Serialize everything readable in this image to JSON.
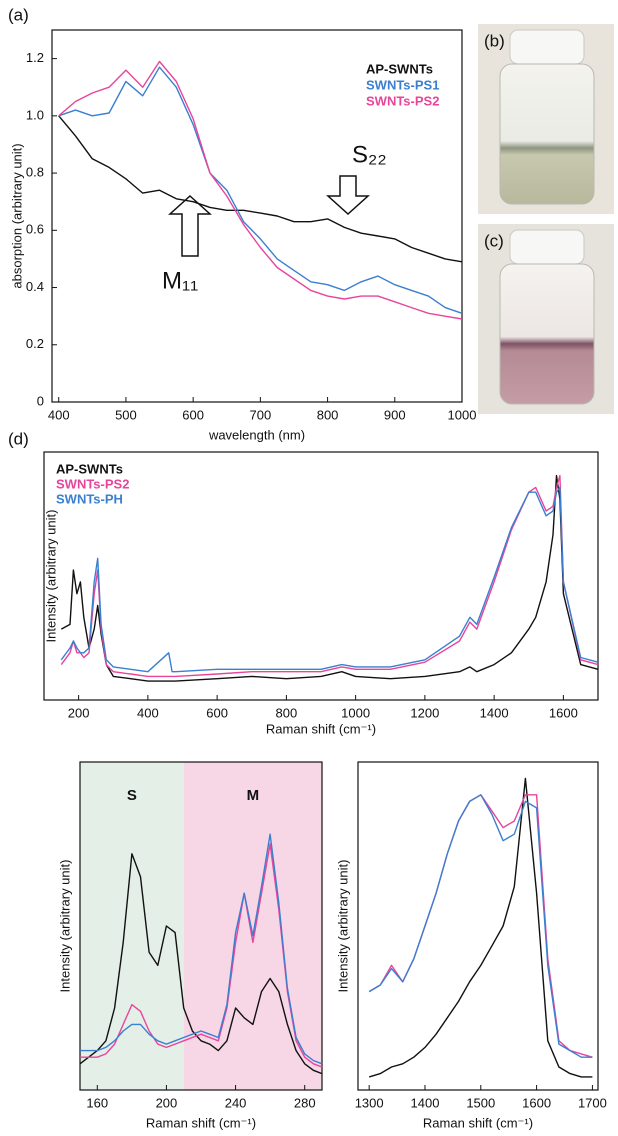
{
  "chart_data": [
    {
      "type": "line",
      "panel_label": "(a)",
      "x_label": "wavelength (nm)",
      "y_label": "absorption (arbitrary unit)",
      "xlim": [
        390,
        1000
      ],
      "ylim": [
        0,
        1.3
      ],
      "xticks": [
        400,
        500,
        600,
        700,
        800,
        900,
        1000
      ],
      "yticks": [
        0,
        0.2,
        0.4,
        0.6,
        0.8,
        {
          "value": 1,
          "label": "1.0"
        },
        1.2
      ],
      "annotations": [
        "S₂₂",
        "M₁₁"
      ],
      "x": [
        400,
        425,
        450,
        475,
        500,
        525,
        550,
        575,
        600,
        625,
        650,
        675,
        700,
        725,
        750,
        775,
        800,
        825,
        850,
        875,
        900,
        925,
        950,
        975,
        1000
      ],
      "series": [
        {
          "name": "AP-SWNTs",
          "color": "#111111",
          "values": [
            1.0,
            0.93,
            0.85,
            0.82,
            0.78,
            0.73,
            0.74,
            0.71,
            0.7,
            0.68,
            0.67,
            0.67,
            0.66,
            0.65,
            0.63,
            0.63,
            0.64,
            0.61,
            0.59,
            0.58,
            0.57,
            0.54,
            0.52,
            0.5,
            0.49
          ]
        },
        {
          "name": "SWNTs-PS1",
          "color": "#3a7fd0",
          "values": [
            1.0,
            1.02,
            1.0,
            1.01,
            1.12,
            1.07,
            1.17,
            1.1,
            0.97,
            0.8,
            0.74,
            0.63,
            0.57,
            0.5,
            0.46,
            0.42,
            0.41,
            0.39,
            0.42,
            0.44,
            0.41,
            0.39,
            0.37,
            0.33,
            0.31
          ]
        },
        {
          "name": "SWNTs-PS2",
          "color": "#e8459a",
          "values": [
            1.0,
            1.05,
            1.08,
            1.1,
            1.16,
            1.1,
            1.19,
            1.12,
            0.99,
            0.8,
            0.72,
            0.62,
            0.54,
            0.47,
            0.43,
            0.39,
            0.37,
            0.36,
            0.37,
            0.37,
            0.35,
            0.33,
            0.31,
            0.3,
            0.29
          ]
        }
      ]
    },
    {
      "type": "line",
      "panel_label": "(d)",
      "x_label": "Raman shift (cm⁻¹)",
      "y_label": "Intensity (arbitrary unit)",
      "xlim": [
        100,
        1700
      ],
      "ylim": [
        0,
        1.05
      ],
      "xticks": [
        200,
        400,
        600,
        800,
        1000,
        1200,
        1400,
        1600
      ],
      "x": [
        150,
        175,
        185,
        195,
        205,
        215,
        230,
        245,
        255,
        265,
        280,
        300,
        350,
        400,
        460,
        470,
        480,
        600,
        700,
        800,
        900,
        960,
        1000,
        1100,
        1200,
        1300,
        1330,
        1350,
        1400,
        1450,
        1500,
        1520,
        1550,
        1570,
        1580,
        1590,
        1600,
        1650,
        1700
      ],
      "series": [
        {
          "name": "AP-SWNTs",
          "color": "#111111",
          "values": [
            0.3,
            0.32,
            0.55,
            0.45,
            0.5,
            0.35,
            0.22,
            0.3,
            0.4,
            0.28,
            0.15,
            0.1,
            0.09,
            0.08,
            0.08,
            0.08,
            0.08,
            0.09,
            0.1,
            0.09,
            0.1,
            0.12,
            0.1,
            0.09,
            0.1,
            0.12,
            0.14,
            0.12,
            0.15,
            0.2,
            0.3,
            0.35,
            0.5,
            0.7,
            0.95,
            0.85,
            0.45,
            0.15,
            0.13
          ]
        },
        {
          "name": "SWNTs-PS2",
          "color": "#e8459a",
          "values": [
            0.15,
            0.2,
            0.25,
            0.2,
            0.2,
            0.18,
            0.2,
            0.45,
            0.55,
            0.3,
            0.15,
            0.12,
            0.11,
            0.1,
            0.1,
            0.1,
            0.1,
            0.11,
            0.12,
            0.12,
            0.12,
            0.14,
            0.13,
            0.13,
            0.16,
            0.25,
            0.33,
            0.3,
            0.5,
            0.72,
            0.88,
            0.9,
            0.8,
            0.82,
            0.9,
            0.95,
            0.5,
            0.17,
            0.15
          ]
        },
        {
          "name": "SWNTs-PH",
          "color": "#3a7fd0",
          "values": [
            0.17,
            0.22,
            0.25,
            0.22,
            0.2,
            0.2,
            0.22,
            0.5,
            0.6,
            0.32,
            0.17,
            0.14,
            0.13,
            0.12,
            0.2,
            0.12,
            0.12,
            0.13,
            0.13,
            0.13,
            0.13,
            0.15,
            0.14,
            0.14,
            0.17,
            0.27,
            0.35,
            0.32,
            0.52,
            0.73,
            0.88,
            0.88,
            0.78,
            0.8,
            0.88,
            0.9,
            0.5,
            0.18,
            0.16
          ]
        }
      ]
    },
    {
      "type": "line",
      "x_label": "Raman shift (cm⁻¹)",
      "y_label": "Intensity (arbitrary unit)",
      "xlim": [
        150,
        290
      ],
      "ylim": [
        0,
        1
      ],
      "xticks": [
        160,
        200,
        240,
        280
      ],
      "regions": [
        {
          "label": "S",
          "from": 150,
          "to": 210,
          "color": "#e4efe8"
        },
        {
          "label": "M",
          "from": 210,
          "to": 290,
          "color": "#f7d6e5"
        }
      ],
      "x": [
        150,
        155,
        160,
        165,
        170,
        175,
        180,
        185,
        190,
        195,
        200,
        205,
        210,
        215,
        220,
        225,
        230,
        235,
        240,
        245,
        250,
        255,
        260,
        265,
        270,
        275,
        280,
        285,
        290
      ],
      "series": [
        {
          "color": "#111111",
          "values": [
            0.08,
            0.1,
            0.12,
            0.15,
            0.25,
            0.45,
            0.72,
            0.65,
            0.42,
            0.38,
            0.5,
            0.48,
            0.25,
            0.18,
            0.15,
            0.14,
            0.12,
            0.15,
            0.25,
            0.22,
            0.2,
            0.3,
            0.34,
            0.3,
            0.2,
            0.12,
            0.08,
            0.06,
            0.05
          ]
        },
        {
          "color": "#e8459a",
          "values": [
            0.1,
            0.1,
            0.1,
            0.11,
            0.14,
            0.2,
            0.26,
            0.24,
            0.18,
            0.14,
            0.13,
            0.14,
            0.15,
            0.16,
            0.17,
            0.16,
            0.15,
            0.25,
            0.45,
            0.6,
            0.45,
            0.6,
            0.75,
            0.55,
            0.3,
            0.15,
            0.1,
            0.08,
            0.07
          ]
        },
        {
          "color": "#3a7fd0",
          "values": [
            0.12,
            0.12,
            0.12,
            0.13,
            0.15,
            0.18,
            0.2,
            0.2,
            0.17,
            0.15,
            0.14,
            0.15,
            0.16,
            0.17,
            0.18,
            0.17,
            0.16,
            0.26,
            0.48,
            0.6,
            0.47,
            0.62,
            0.78,
            0.57,
            0.31,
            0.16,
            0.11,
            0.09,
            0.08
          ]
        }
      ]
    },
    {
      "type": "line",
      "x_label": "Raman shift (cm⁻¹)",
      "y_label": "Intensity (arbitrary unit)",
      "xlim": [
        1280,
        1710
      ],
      "ylim": [
        0,
        1
      ],
      "xticks": [
        1300,
        1400,
        1500,
        1600,
        1700
      ],
      "x": [
        1300,
        1320,
        1340,
        1360,
        1380,
        1400,
        1420,
        1440,
        1460,
        1480,
        1500,
        1520,
        1540,
        1560,
        1580,
        1600,
        1620,
        1640,
        1660,
        1680,
        1700
      ],
      "series": [
        {
          "color": "#111111",
          "values": [
            0.04,
            0.05,
            0.07,
            0.08,
            0.1,
            0.13,
            0.17,
            0.22,
            0.27,
            0.33,
            0.38,
            0.44,
            0.5,
            0.62,
            0.95,
            0.6,
            0.15,
            0.07,
            0.05,
            0.04,
            0.04
          ]
        },
        {
          "color": "#e8459a",
          "values": [
            0.3,
            0.32,
            0.38,
            0.33,
            0.4,
            0.5,
            0.6,
            0.72,
            0.82,
            0.88,
            0.9,
            0.85,
            0.8,
            0.82,
            0.9,
            0.9,
            0.4,
            0.15,
            0.12,
            0.11,
            0.1
          ]
        },
        {
          "color": "#3a7fd0",
          "values": [
            0.3,
            0.32,
            0.37,
            0.33,
            0.4,
            0.5,
            0.6,
            0.72,
            0.82,
            0.88,
            0.9,
            0.84,
            0.76,
            0.78,
            0.88,
            0.86,
            0.38,
            0.14,
            0.12,
            0.1,
            0.1
          ]
        }
      ]
    }
  ],
  "photos": [
    {
      "label": "(b)"
    },
    {
      "label": "(c)"
    }
  ]
}
